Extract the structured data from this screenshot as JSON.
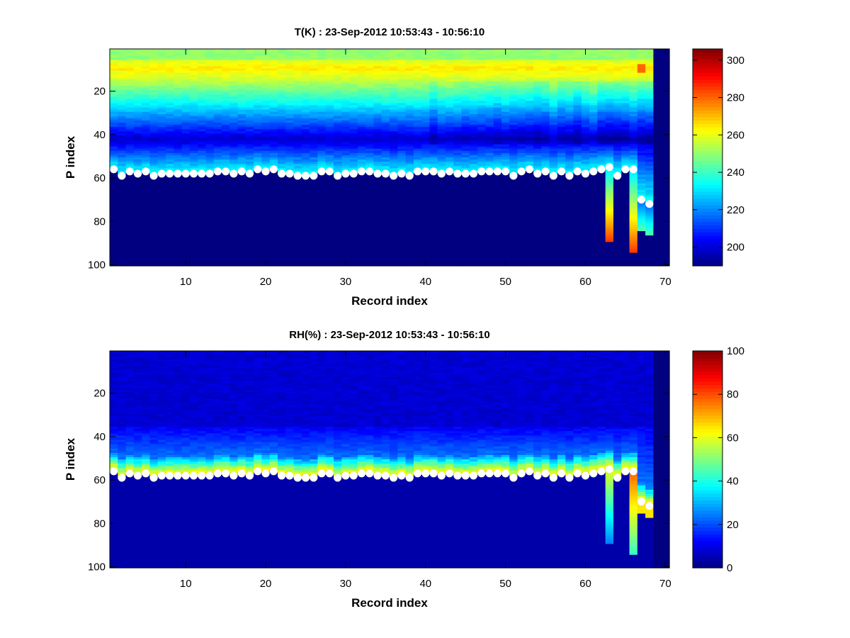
{
  "chart_data": [
    {
      "type": "heatmap",
      "title": "T(K) : 23-Sep-2012 10:53:43 - 10:56:10",
      "xlabel": "Record index",
      "ylabel": "P index",
      "xlim": [
        0.5,
        70.5
      ],
      "ylim": [
        100.5,
        0.5
      ],
      "y_reversed": true,
      "xticks": [
        10,
        20,
        30,
        40,
        50,
        60,
        70
      ],
      "yticks": [
        20,
        40,
        60,
        80,
        100
      ],
      "colormap": "jet",
      "clim": [
        190,
        306
      ],
      "colorbar_ticks": [
        200,
        220,
        240,
        260,
        280,
        300
      ],
      "grid": false,
      "field": "temperature",
      "n_records": 70,
      "n_levels": 100
    },
    {
      "type": "heatmap",
      "title": "RH(%) : 23-Sep-2012 10:53:43 - 10:56:10",
      "xlabel": "Record index",
      "ylabel": "P index",
      "xlim": [
        0.5,
        70.5
      ],
      "ylim": [
        100.5,
        0.5
      ],
      "y_reversed": true,
      "xticks": [
        10,
        20,
        30,
        40,
        50,
        60,
        70
      ],
      "yticks": [
        20,
        40,
        60,
        80,
        100
      ],
      "colormap": "jet",
      "clim": [
        0,
        100
      ],
      "colorbar_ticks": [
        0,
        20,
        40,
        60,
        80,
        100
      ],
      "grid": false,
      "field": "humidity",
      "n_records": 70,
      "n_levels": 100
    }
  ],
  "surface_markers": {
    "marker": "white-circle",
    "x": [
      1,
      2,
      3,
      4,
      5,
      6,
      7,
      8,
      9,
      10,
      11,
      12,
      13,
      14,
      15,
      16,
      17,
      18,
      19,
      20,
      21,
      22,
      23,
      24,
      25,
      26,
      27,
      28,
      29,
      30,
      31,
      32,
      33,
      34,
      35,
      36,
      37,
      38,
      39,
      40,
      41,
      42,
      43,
      44,
      45,
      46,
      47,
      48,
      49,
      50,
      51,
      52,
      53,
      54,
      55,
      56,
      57,
      58,
      59,
      60,
      61,
      62,
      63,
      64,
      65,
      66,
      67,
      68
    ],
    "y": [
      56,
      59,
      57,
      58,
      57,
      59,
      58,
      58,
      58,
      58,
      58,
      58,
      58,
      57,
      57,
      58,
      57,
      58,
      56,
      57,
      56,
      58,
      58,
      59,
      59,
      59,
      57,
      57,
      59,
      58,
      58,
      57,
      57,
      58,
      58,
      59,
      58,
      59,
      57,
      57,
      57,
      58,
      57,
      58,
      58,
      58,
      57,
      57,
      57,
      57,
      59,
      57,
      56,
      58,
      57,
      59,
      57,
      59,
      57,
      58,
      57,
      56,
      55,
      59,
      56,
      56,
      70,
      72
    ]
  },
  "probe_columns": [
    {
      "x": 63,
      "p_bottom": 89
    },
    {
      "x": 66,
      "p_bottom": 94
    }
  ],
  "missing_columns": [
    69,
    70
  ]
}
